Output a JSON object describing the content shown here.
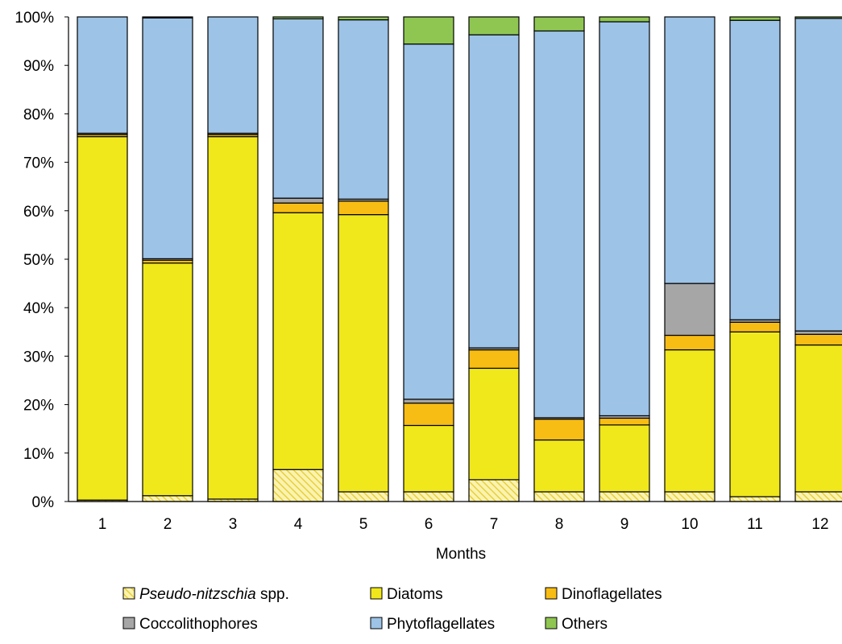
{
  "chart_data": {
    "type": "bar",
    "stacked": true,
    "percent": true,
    "xlabel": "Months",
    "ylabel": "",
    "ylim": [
      0,
      100
    ],
    "yticks": [
      "0%",
      "10%",
      "20%",
      "30%",
      "40%",
      "50%",
      "60%",
      "70%",
      "80%",
      "90%",
      "100%"
    ],
    "categories": [
      "1",
      "2",
      "3",
      "4",
      "5",
      "6",
      "7",
      "8",
      "9",
      "10",
      "11",
      "12"
    ],
    "legend_position": "bottom",
    "series": [
      {
        "name": "Pseudo-nitzschia spp.",
        "name_italic": "Pseudo-nitzschia",
        "name_suffix": " spp.",
        "color": "#f5e87a",
        "pattern": "hatch",
        "values": [
          0.3,
          1.2,
          0.5,
          6.6,
          2.0,
          2.0,
          4.5,
          2.0,
          2.0,
          2.0,
          1.0,
          2.0
        ]
      },
      {
        "name": "Diatoms",
        "color": "#f0e81a",
        "values": [
          75.0,
          48.0,
          74.8,
          53.0,
          57.2,
          13.7,
          23.0,
          10.7,
          13.8,
          29.3,
          34.0,
          30.3
        ]
      },
      {
        "name": "Dinoflagellates",
        "color": "#f8bd14",
        "values": [
          0.4,
          0.6,
          0.4,
          2.0,
          2.8,
          4.6,
          3.8,
          4.3,
          1.4,
          3.0,
          2.0,
          2.2
        ]
      },
      {
        "name": "Coccolithophores",
        "color": "#a6a6a6",
        "values": [
          0.3,
          0.3,
          0.3,
          1.0,
          0.4,
          0.8,
          0.4,
          0.3,
          0.5,
          10.7,
          0.5,
          0.7
        ]
      },
      {
        "name": "Phytoflagellates",
        "color": "#9dc3e6",
        "values": [
          24.0,
          49.7,
          24.0,
          37.0,
          37.0,
          73.3,
          64.6,
          79.8,
          81.3,
          55.0,
          61.8,
          64.5
        ]
      },
      {
        "name": "Others",
        "color": "#8fc652",
        "values": [
          0.0,
          0.2,
          0.0,
          0.4,
          0.6,
          5.6,
          3.7,
          2.9,
          1.0,
          0.0,
          0.7,
          0.3
        ]
      }
    ]
  }
}
